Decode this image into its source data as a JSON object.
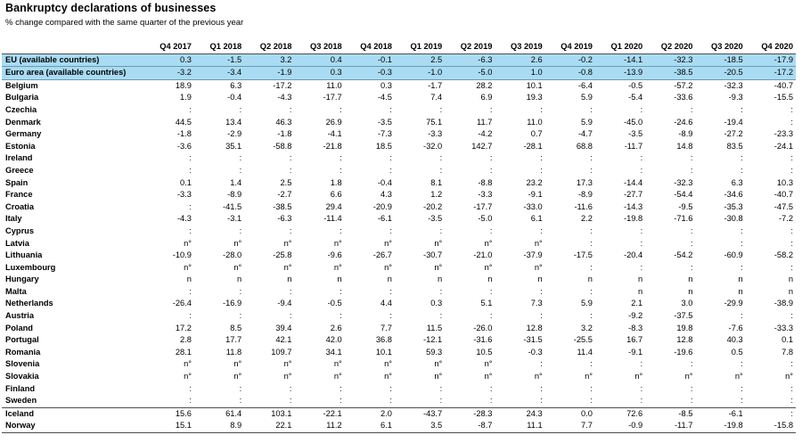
{
  "title": "Bankruptcy declarations of businesses",
  "subtitle": "% change compared with the same quarter of the previous year",
  "columns": [
    "Q4 2017",
    "Q1 2018",
    "Q2 2018",
    "Q3 2018",
    "Q4 2018",
    "Q1 2019",
    "Q2 2019",
    "Q3 2019",
    "Q4 2019",
    "Q1 2020",
    "Q2 2020",
    "Q3 2020",
    "Q4 2020"
  ],
  "rows": [
    {
      "label": "EU (available countries)",
      "values": [
        "0.3",
        "-1.5",
        "3.2",
        "0.4",
        "-0.1",
        "2.5",
        "-6.3",
        "2.6",
        "-0.2",
        "-14.1",
        "-32.3",
        "-18.5",
        "-17.9"
      ]
    },
    {
      "label": "Euro area (available countries)",
      "values": [
        "-3.2",
        "-3.4",
        "-1.9",
        "0.3",
        "-0.3",
        "-1.0",
        "-5.0",
        "1.0",
        "-0.8",
        "-13.9",
        "-38.5",
        "-20.5",
        "-17.2"
      ]
    },
    {
      "label": "Belgium",
      "values": [
        "18.9",
        "6.3",
        "-17.2",
        "11.0",
        "0.3",
        "-1.7",
        "28.2",
        "10.1",
        "-6.4",
        "-0.5",
        "-57.2",
        "-32.3",
        "-40.7"
      ]
    },
    {
      "label": "Bulgaria",
      "values": [
        "1.9",
        "-0.4",
        "-4.3",
        "-17.7",
        "-4.5",
        "7.4",
        "6.9",
        "19.3",
        "5.9",
        "-5.4",
        "-33.6",
        "-9.3",
        "-15.5"
      ]
    },
    {
      "label": "Czechia",
      "values": [
        ":",
        ":",
        ":",
        ":",
        ":",
        ":",
        ":",
        ":",
        ":",
        ":",
        ":",
        ":",
        ":"
      ]
    },
    {
      "label": "Denmark",
      "values": [
        "44.5",
        "13.4",
        "46.3",
        "26.9",
        "-3.5",
        "75.1",
        "11.7",
        "11.0",
        "5.9",
        "-45.0",
        "-24.6",
        "-19.4",
        ":"
      ]
    },
    {
      "label": "Germany",
      "values": [
        "-1.8",
        "-2.9",
        "-1.8",
        "-4.1",
        "-7.3",
        "-3.3",
        "-4.2",
        "0.7",
        "-4.7",
        "-3.5",
        "-8.9",
        "-27.2",
        "-23.3"
      ]
    },
    {
      "label": "Estonia",
      "values": [
        "-3.6",
        "35.1",
        "-58.8",
        "-21.8",
        "18.5",
        "-32.0",
        "142.7",
        "-28.1",
        "68.8",
        "-11.7",
        "14.8",
        "83.5",
        "-24.1"
      ]
    },
    {
      "label": "Ireland",
      "values": [
        ":",
        ":",
        ":",
        ":",
        ":",
        ":",
        ":",
        ":",
        ":",
        ":",
        ":",
        ":",
        ":"
      ]
    },
    {
      "label": "Greece",
      "values": [
        ":",
        ":",
        ":",
        ":",
        ":",
        ":",
        ":",
        ":",
        ":",
        ":",
        ":",
        ":",
        ":"
      ]
    },
    {
      "label": "Spain",
      "values": [
        "0.1",
        "1.4",
        "2.5",
        "1.8",
        "-0.4",
        "8.1",
        "-8.8",
        "23.2",
        "17.3",
        "-14.4",
        "-32.3",
        "6.3",
        "10.3"
      ]
    },
    {
      "label": "France",
      "values": [
        "-3.3",
        "-8.9",
        "-2.7",
        "6.6",
        "4.3",
        "1.2",
        "-3.3",
        "-9.1",
        "-8.9",
        "-27.7",
        "-54.4",
        "-34.6",
        "-40.7"
      ]
    },
    {
      "label": "Croatia",
      "values": [
        ":",
        "-41.5",
        "-38.5",
        "29.4",
        "-20.9",
        "-20.2",
        "-17.7",
        "-33.0",
        "-11.6",
        "-14.3",
        "-9.5",
        "-35.3",
        "-47.5"
      ]
    },
    {
      "label": "Italy",
      "values": [
        "-4.3",
        "-3.1",
        "-6.3",
        "-11.4",
        "-6.1",
        "-3.5",
        "-5.0",
        "6.1",
        "2.2",
        "-19.8",
        "-71.6",
        "-30.8",
        "-7.2"
      ]
    },
    {
      "label": "Cyprus",
      "values": [
        ":",
        ":",
        ":",
        ":",
        ":",
        ":",
        ":",
        ":",
        ":",
        ":",
        ":",
        ":",
        ":"
      ]
    },
    {
      "label": "Latvia",
      "values": [
        "n°",
        "n°",
        "n°",
        "n°",
        "n°",
        "n°",
        "n°",
        "n°",
        ":",
        ":",
        ":",
        ":",
        ":"
      ]
    },
    {
      "label": "Lithuania",
      "values": [
        "-10.9",
        "-28.0",
        "-25.8",
        "-9.6",
        "-26.7",
        "-30.7",
        "-21.0",
        "-37.9",
        "-17.5",
        "-20.4",
        "-54.2",
        "-60.9",
        "-58.2"
      ]
    },
    {
      "label": "Luxembourg",
      "values": [
        "n°",
        "n°",
        "n°",
        "n°",
        "n°",
        "n°",
        "n°",
        "n°",
        ":",
        ":",
        ":",
        ":",
        ":"
      ]
    },
    {
      "label": "Hungary",
      "values": [
        "n",
        "n",
        "n",
        "n",
        "n",
        "n",
        "n",
        "n",
        "n",
        "n",
        "n",
        "n",
        "n"
      ]
    },
    {
      "label": "Malta",
      "values": [
        ":",
        ":",
        ":",
        ":",
        ":",
        ":",
        ":",
        ":",
        ":",
        "n",
        "n",
        "n",
        "n"
      ]
    },
    {
      "label": "Netherlands",
      "values": [
        "-26.4",
        "-16.9",
        "-9.4",
        "-0.5",
        "4.4",
        "0.3",
        "5.1",
        "7.3",
        "5.9",
        "2.1",
        "3.0",
        "-29.9",
        "-38.9"
      ]
    },
    {
      "label": "Austria",
      "values": [
        ":",
        ":",
        ":",
        ":",
        ":",
        ":",
        ":",
        ":",
        ":",
        "-9.2",
        "-37.5",
        ":",
        ":"
      ]
    },
    {
      "label": "Poland",
      "values": [
        "17.2",
        "8.5",
        "39.4",
        "2.6",
        "7.7",
        "11.5",
        "-26.0",
        "12.8",
        "3.2",
        "-8.3",
        "19.8",
        "-7.6",
        "-33.3"
      ]
    },
    {
      "label": "Portugal",
      "values": [
        "2.8",
        "17.7",
        "42.1",
        "42.0",
        "36.8",
        "-12.1",
        "-31.6",
        "-31.5",
        "-25.5",
        "16.7",
        "12.8",
        "40.3",
        "0.1"
      ]
    },
    {
      "label": "Romania",
      "values": [
        "28.1",
        "11.8",
        "109.7",
        "34.1",
        "10.1",
        "59.3",
        "10.5",
        "-0.3",
        "11.4",
        "-9.1",
        "-19.6",
        "0.5",
        "7.8"
      ]
    },
    {
      "label": "Slovenia",
      "values": [
        "n°",
        "n°",
        "n°",
        "n°",
        "n°",
        "n°",
        "n°",
        ":",
        ":",
        ":",
        ":",
        ":",
        ":"
      ]
    },
    {
      "label": "Slovakia",
      "values": [
        "n°",
        "n°",
        "n°",
        "n°",
        "n°",
        "n°",
        "n°",
        "n°",
        "n°",
        "n°",
        "n°",
        "n°",
        "n°"
      ]
    },
    {
      "label": "Finland",
      "values": [
        ":",
        ":",
        ":",
        ":",
        ":",
        ":",
        ":",
        ":",
        ":",
        ":",
        ":",
        ":",
        ":"
      ]
    },
    {
      "label": "Sweden",
      "values": [
        ":",
        ":",
        ":",
        ":",
        ":",
        ":",
        ":",
        ":",
        ":",
        ":",
        ":",
        ":",
        ":"
      ]
    },
    {
      "label": "Iceland",
      "values": [
        "15.6",
        "61.4",
        "103.1",
        "-22.1",
        "2.0",
        "-43.7",
        "-28.3",
        "24.3",
        "0.0",
        "72.6",
        "-8.5",
        "-6.1",
        ":"
      ]
    },
    {
      "label": "Norway",
      "values": [
        "15.1",
        "8.9",
        "22.1",
        "11.2",
        "6.1",
        "3.5",
        "-8.7",
        "11.1",
        "7.7",
        "-0.9",
        "-11.7",
        "-19.8",
        "-15.8"
      ]
    }
  ],
  "colors": {
    "aggregate_fill": "#a9dcf3",
    "rule": "#4d4d4d"
  }
}
